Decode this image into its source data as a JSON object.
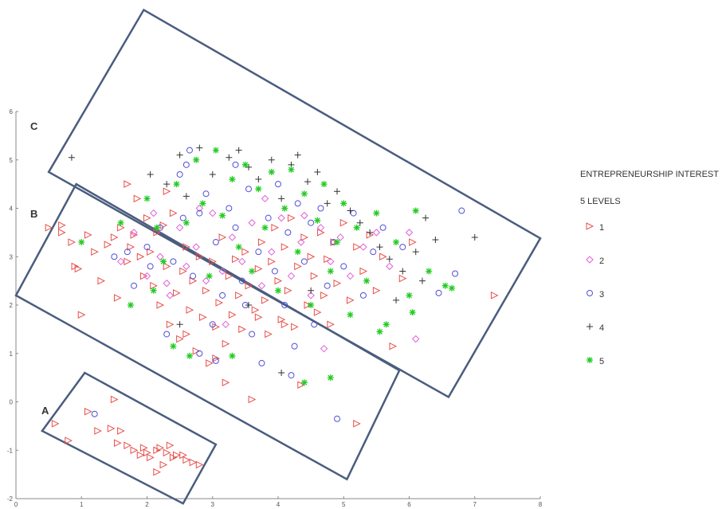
{
  "chart_data": {
    "type": "scatter",
    "title": "",
    "xlabel": "",
    "ylabel": "",
    "xlim": [
      0,
      8
    ],
    "ylim": [
      -2,
      6
    ],
    "x_ticks": [
      "0",
      "1",
      "2",
      "3",
      "4",
      "5",
      "6",
      "7",
      "8"
    ],
    "y_ticks": [
      "-2",
      "-1",
      "0",
      "1",
      "2",
      "3",
      "4",
      "5",
      "6"
    ],
    "grid": false,
    "legend": {
      "title_line1": "ENTREPRENEURSHIP INTEREST",
      "title_line2": "5 LEVELS",
      "placement": "right",
      "entries": [
        {
          "label": "1",
          "marker": "triangle-right",
          "color": "#e8504a"
        },
        {
          "label": "2",
          "marker": "diamond",
          "color": "#e060d8"
        },
        {
          "label": "3",
          "marker": "circle",
          "color": "#5050d8"
        },
        {
          "label": "4",
          "marker": "plus",
          "color": "#333333"
        },
        {
          "label": "5",
          "marker": "asterisk",
          "color": "#22cc22"
        }
      ]
    },
    "regions": [
      {
        "label": "A",
        "corners": [
          [
            1.05,
            0.6
          ],
          [
            3.05,
            -0.88
          ],
          [
            2.55,
            -2.1
          ],
          [
            0.4,
            -0.6
          ]
        ]
      },
      {
        "label": "B",
        "corners": [
          [
            0.92,
            4.5
          ],
          [
            5.85,
            0.65
          ],
          [
            5.05,
            -1.6
          ],
          [
            0.0,
            2.2
          ]
        ]
      },
      {
        "label": "C",
        "corners": [
          [
            1.95,
            8.1
          ],
          [
            8.0,
            3.38
          ],
          [
            6.6,
            0.1
          ],
          [
            0.5,
            4.75
          ]
        ]
      }
    ],
    "series": [
      {
        "name": "1",
        "points": [
          [
            0.5,
            3.6
          ],
          [
            0.7,
            3.5
          ],
          [
            0.7,
            3.65
          ],
          [
            0.85,
            3.3
          ],
          [
            0.9,
            2.8
          ],
          [
            0.95,
            2.75
          ],
          [
            1.1,
            3.45
          ],
          [
            1.2,
            3.1
          ],
          [
            1.3,
            2.5
          ],
          [
            1.4,
            3.25
          ],
          [
            1.5,
            3.4
          ],
          [
            1.55,
            2.15
          ],
          [
            1.6,
            3.6
          ],
          [
            1.7,
            2.9
          ],
          [
            1.75,
            3.2
          ],
          [
            1.8,
            3.45
          ],
          [
            1.85,
            4.2
          ],
          [
            1.9,
            3.0
          ],
          [
            1.95,
            2.6
          ],
          [
            2.0,
            3.8
          ],
          [
            2.05,
            3.1
          ],
          [
            2.1,
            2.4
          ],
          [
            2.15,
            3.5
          ],
          [
            2.2,
            2.0
          ],
          [
            2.25,
            3.65
          ],
          [
            2.3,
            2.8
          ],
          [
            2.35,
            1.6
          ],
          [
            2.4,
            3.9
          ],
          [
            2.45,
            2.25
          ],
          [
            2.5,
            1.3
          ],
          [
            2.55,
            2.7
          ],
          [
            2.6,
            3.2
          ],
          [
            2.65,
            1.9
          ],
          [
            2.7,
            2.5
          ],
          [
            2.75,
            1.05
          ],
          [
            2.8,
            3.0
          ],
          [
            2.85,
            1.75
          ],
          [
            2.9,
            2.3
          ],
          [
            2.95,
            0.8
          ],
          [
            3.0,
            2.9
          ],
          [
            3.05,
            1.55
          ],
          [
            3.1,
            2.05
          ],
          [
            3.15,
            3.4
          ],
          [
            3.2,
            1.2
          ],
          [
            3.25,
            2.6
          ],
          [
            3.3,
            1.8
          ],
          [
            3.35,
            2.95
          ],
          [
            3.4,
            2.2
          ],
          [
            3.45,
            1.5
          ],
          [
            3.5,
            3.1
          ],
          [
            3.55,
            2.4
          ],
          [
            3.6,
            0.05
          ],
          [
            3.65,
            1.9
          ],
          [
            3.7,
            2.75
          ],
          [
            3.75,
            3.3
          ],
          [
            3.8,
            2.1
          ],
          [
            3.85,
            1.4
          ],
          [
            3.9,
            2.9
          ],
          [
            3.95,
            3.6
          ],
          [
            4.0,
            2.5
          ],
          [
            4.05,
            1.7
          ],
          [
            4.1,
            3.2
          ],
          [
            4.15,
            2.3
          ],
          [
            4.2,
            3.8
          ],
          [
            4.25,
            1.55
          ],
          [
            4.3,
            2.8
          ],
          [
            4.35,
            0.35
          ],
          [
            4.4,
            3.4
          ],
          [
            4.45,
            2.0
          ],
          [
            4.5,
            3.0
          ],
          [
            4.55,
            2.6
          ],
          [
            4.6,
            1.85
          ],
          [
            4.65,
            3.5
          ],
          [
            4.7,
            2.2
          ],
          [
            4.75,
            2.95
          ],
          [
            4.8,
            1.6
          ],
          [
            4.85,
            3.3
          ],
          [
            4.9,
            2.45
          ],
          [
            5.0,
            3.7
          ],
          [
            5.1,
            2.1
          ],
          [
            5.2,
            3.2
          ],
          [
            5.3,
            2.7
          ],
          [
            5.4,
            3.45
          ],
          [
            5.5,
            2.3
          ],
          [
            5.6,
            3.0
          ],
          [
            5.75,
            1.15
          ],
          [
            5.9,
            2.55
          ],
          [
            6.05,
            3.3
          ],
          [
            7.3,
            2.2
          ],
          [
            5.2,
            -0.45
          ],
          [
            1.0,
            1.8
          ],
          [
            1.7,
            4.5
          ],
          [
            2.3,
            4.35
          ],
          [
            3.7,
            1.75
          ],
          [
            2.6,
            1.4
          ],
          [
            3.2,
            0.4
          ],
          [
            3.05,
            0.9
          ],
          [
            4.1,
            1.6
          ],
          [
            0.6,
            -0.45
          ],
          [
            0.8,
            -0.8
          ],
          [
            1.1,
            -0.2
          ],
          [
            1.25,
            -0.6
          ],
          [
            1.45,
            -0.55
          ],
          [
            1.5,
            0.05
          ],
          [
            1.55,
            -0.85
          ],
          [
            1.6,
            -0.6
          ],
          [
            1.7,
            -0.9
          ],
          [
            1.8,
            -1.0
          ],
          [
            1.9,
            -1.1
          ],
          [
            1.95,
            -0.95
          ],
          [
            2.0,
            -1.05
          ],
          [
            2.05,
            -1.15
          ],
          [
            2.15,
            -1.0
          ],
          [
            2.2,
            -0.95
          ],
          [
            2.25,
            -1.3
          ],
          [
            2.3,
            -1.05
          ],
          [
            2.35,
            -0.9
          ],
          [
            2.4,
            -1.15
          ],
          [
            2.45,
            -1.1
          ],
          [
            2.55,
            -1.1
          ],
          [
            2.6,
            -1.2
          ],
          [
            2.7,
            -1.25
          ],
          [
            2.8,
            -1.3
          ],
          [
            2.15,
            -1.45
          ]
        ]
      },
      {
        "name": "2",
        "points": [
          [
            1.6,
            2.9
          ],
          [
            1.8,
            3.5
          ],
          [
            2.0,
            2.6
          ],
          [
            2.1,
            3.9
          ],
          [
            2.2,
            3.0
          ],
          [
            2.35,
            2.2
          ],
          [
            2.5,
            3.6
          ],
          [
            2.6,
            2.8
          ],
          [
            2.75,
            3.2
          ],
          [
            2.9,
            2.5
          ],
          [
            3.0,
            3.9
          ],
          [
            3.15,
            2.7
          ],
          [
            3.3,
            3.4
          ],
          [
            3.45,
            2.9
          ],
          [
            3.6,
            3.7
          ],
          [
            3.75,
            2.4
          ],
          [
            3.9,
            3.1
          ],
          [
            4.05,
            3.8
          ],
          [
            4.2,
            2.6
          ],
          [
            4.35,
            3.3
          ],
          [
            4.5,
            2.2
          ],
          [
            4.65,
            3.6
          ],
          [
            4.8,
            2.9
          ],
          [
            4.95,
            3.4
          ],
          [
            5.1,
            2.6
          ],
          [
            5.3,
            3.2
          ],
          [
            5.5,
            3.5
          ],
          [
            5.7,
            2.8
          ],
          [
            6.0,
            3.5
          ],
          [
            6.1,
            1.3
          ],
          [
            4.7,
            1.1
          ],
          [
            3.2,
            1.6
          ],
          [
            2.3,
            2.45
          ],
          [
            3.8,
            4.2
          ],
          [
            4.4,
            3.85
          ],
          [
            2.8,
            4.0
          ]
        ]
      },
      {
        "name": "3",
        "points": [
          [
            1.5,
            3.0
          ],
          [
            1.8,
            2.4
          ],
          [
            2.0,
            3.2
          ],
          [
            2.05,
            2.8
          ],
          [
            2.2,
            3.6
          ],
          [
            2.3,
            1.4
          ],
          [
            2.4,
            2.9
          ],
          [
            2.5,
            4.7
          ],
          [
            2.55,
            3.8
          ],
          [
            2.65,
            5.2
          ],
          [
            2.7,
            2.6
          ],
          [
            2.8,
            3.9
          ],
          [
            2.9,
            4.3
          ],
          [
            3.0,
            1.6
          ],
          [
            3.05,
            3.3
          ],
          [
            3.15,
            2.2
          ],
          [
            3.25,
            4.0
          ],
          [
            3.35,
            3.6
          ],
          [
            3.45,
            2.5
          ],
          [
            3.55,
            4.4
          ],
          [
            3.6,
            1.4
          ],
          [
            3.7,
            3.1
          ],
          [
            3.75,
            0.8
          ],
          [
            3.85,
            3.8
          ],
          [
            3.95,
            2.7
          ],
          [
            4.0,
            4.5
          ],
          [
            4.1,
            2.0
          ],
          [
            4.15,
            3.5
          ],
          [
            4.25,
            1.15
          ],
          [
            4.3,
            4.1
          ],
          [
            4.4,
            2.9
          ],
          [
            4.5,
            3.7
          ],
          [
            4.55,
            1.6
          ],
          [
            4.65,
            4.0
          ],
          [
            4.75,
            2.4
          ],
          [
            4.85,
            3.3
          ],
          [
            4.9,
            -0.35
          ],
          [
            5.0,
            2.8
          ],
          [
            5.15,
            3.9
          ],
          [
            5.3,
            2.2
          ],
          [
            5.45,
            3.1
          ],
          [
            5.6,
            3.6
          ],
          [
            5.9,
            3.2
          ],
          [
            6.45,
            2.25
          ],
          [
            6.7,
            2.65
          ],
          [
            6.8,
            3.95
          ],
          [
            1.2,
            -0.25
          ],
          [
            2.8,
            1.0
          ],
          [
            3.35,
            4.9
          ],
          [
            4.2,
            0.55
          ],
          [
            3.05,
            0.85
          ],
          [
            1.7,
            3.1
          ],
          [
            2.6,
            4.9
          ],
          [
            3.5,
            2.0
          ]
        ]
      },
      {
        "name": "4",
        "points": [
          [
            0.85,
            5.05
          ],
          [
            2.05,
            4.7
          ],
          [
            2.3,
            4.5
          ],
          [
            2.5,
            5.1
          ],
          [
            2.6,
            4.25
          ],
          [
            2.8,
            5.25
          ],
          [
            3.0,
            4.7
          ],
          [
            3.25,
            5.05
          ],
          [
            3.4,
            5.2
          ],
          [
            3.55,
            4.85
          ],
          [
            3.7,
            4.6
          ],
          [
            3.9,
            5.0
          ],
          [
            4.05,
            4.2
          ],
          [
            4.2,
            4.9
          ],
          [
            4.3,
            5.1
          ],
          [
            4.45,
            4.55
          ],
          [
            4.6,
            4.75
          ],
          [
            4.75,
            4.1
          ],
          [
            4.9,
            4.35
          ],
          [
            5.1,
            3.95
          ],
          [
            5.25,
            3.7
          ],
          [
            5.4,
            3.5
          ],
          [
            5.55,
            3.2
          ],
          [
            5.7,
            2.95
          ],
          [
            5.9,
            2.7
          ],
          [
            6.1,
            3.1
          ],
          [
            6.25,
            3.8
          ],
          [
            6.4,
            3.35
          ],
          [
            7.0,
            3.4
          ],
          [
            5.8,
            2.1
          ],
          [
            6.2,
            2.5
          ],
          [
            4.05,
            0.6
          ],
          [
            3.55,
            2.0
          ],
          [
            2.5,
            1.6
          ],
          [
            4.5,
            2.3
          ]
        ]
      },
      {
        "name": "5",
        "points": [
          [
            1.0,
            3.3
          ],
          [
            1.6,
            3.7
          ],
          [
            1.75,
            2.0
          ],
          [
            2.0,
            4.2
          ],
          [
            2.15,
            3.6
          ],
          [
            2.25,
            2.9
          ],
          [
            2.45,
            4.5
          ],
          [
            2.6,
            3.7
          ],
          [
            2.65,
            0.95
          ],
          [
            2.75,
            5.0
          ],
          [
            2.85,
            4.1
          ],
          [
            2.95,
            2.6
          ],
          [
            3.05,
            5.2
          ],
          [
            3.15,
            3.85
          ],
          [
            3.3,
            4.6
          ],
          [
            3.4,
            3.2
          ],
          [
            3.5,
            4.9
          ],
          [
            3.6,
            2.7
          ],
          [
            3.7,
            4.4
          ],
          [
            3.8,
            3.6
          ],
          [
            3.9,
            4.75
          ],
          [
            4.0,
            2.3
          ],
          [
            4.1,
            4.0
          ],
          [
            4.2,
            4.8
          ],
          [
            4.3,
            3.1
          ],
          [
            4.4,
            4.3
          ],
          [
            4.5,
            2.0
          ],
          [
            4.6,
            3.75
          ],
          [
            4.7,
            4.5
          ],
          [
            4.8,
            2.7
          ],
          [
            4.9,
            3.3
          ],
          [
            5.0,
            4.1
          ],
          [
            5.1,
            1.8
          ],
          [
            5.2,
            3.6
          ],
          [
            5.35,
            2.5
          ],
          [
            5.5,
            3.9
          ],
          [
            5.65,
            1.6
          ],
          [
            5.8,
            3.3
          ],
          [
            6.0,
            2.2
          ],
          [
            6.1,
            3.95
          ],
          [
            6.3,
            2.7
          ],
          [
            6.55,
            2.4
          ],
          [
            6.65,
            2.35
          ],
          [
            4.8,
            0.5
          ],
          [
            4.4,
            0.4
          ],
          [
            2.4,
            1.15
          ],
          [
            3.3,
            0.95
          ],
          [
            2.1,
            2.3
          ],
          [
            5.55,
            1.45
          ],
          [
            6.05,
            1.85
          ]
        ]
      }
    ]
  }
}
